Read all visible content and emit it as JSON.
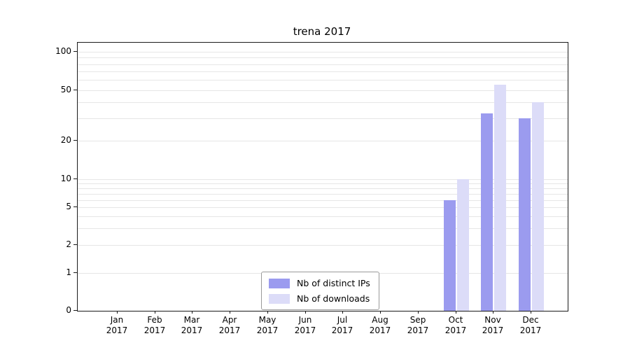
{
  "chart_data": {
    "type": "bar",
    "title": "trena 2017",
    "categories": [
      "Jan",
      "Feb",
      "Mar",
      "Apr",
      "May",
      "Jun",
      "Jul",
      "Aug",
      "Sep",
      "Oct",
      "Nov",
      "Dec"
    ],
    "year_label": "2017",
    "series": [
      {
        "name": "Nb of distinct IPs",
        "color": "#9b9bef",
        "values": [
          0,
          0,
          0,
          0,
          0,
          0,
          0,
          0,
          0,
          6,
          33,
          30
        ]
      },
      {
        "name": "Nb of downloads",
        "color": "#dcdcf8",
        "values": [
          0,
          0,
          0,
          0,
          0,
          0,
          0,
          0,
          0,
          10,
          55,
          40
        ]
      }
    ],
    "y_ticks": [
      0,
      1,
      2,
      5,
      10,
      20,
      50,
      100
    ],
    "grid_values": [
      1,
      2,
      3,
      4,
      5,
      6,
      7,
      8,
      9,
      10,
      20,
      30,
      40,
      50,
      60,
      70,
      80,
      90,
      100
    ],
    "y_scale": "log-like with 0 baseline",
    "ylim": [
      0,
      120
    ],
    "legend_position": "bottom-center",
    "grid": true,
    "xlabel": "",
    "ylabel": ""
  }
}
